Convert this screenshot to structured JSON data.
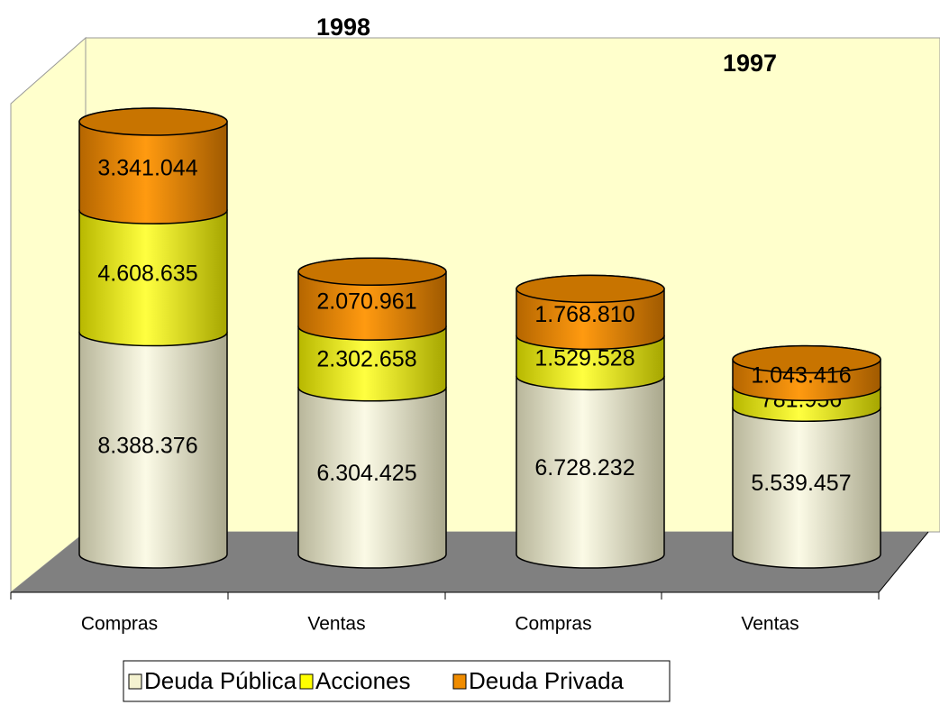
{
  "chart_data": {
    "type": "bar",
    "categories": [
      "Compras",
      "Ventas",
      "Compras",
      "Ventas"
    ],
    "annotations": [
      "1998",
      "1997"
    ],
    "series": [
      {
        "name": "Deuda Pública",
        "color": "#f4f2d0",
        "values": [
          8388376,
          6304425,
          6728232,
          5539457
        ],
        "value_labels": [
          "8.388.376",
          "6.304.425",
          "6.728.232",
          "5.539.457"
        ]
      },
      {
        "name": "Acciones",
        "color": "#ffff00",
        "values": [
          4608635,
          2302658,
          1529528,
          781956
        ],
        "value_labels": [
          "4.608.635",
          "2.302.658",
          "1.529.528",
          "781.956"
        ]
      },
      {
        "name": "Deuda Privada",
        "color": "#f08c00",
        "values": [
          3341044,
          2070961,
          1768810,
          1043416
        ],
        "value_labels": [
          "3.341.044",
          "2.070.961",
          "1.768.810",
          "1.043.416"
        ]
      }
    ],
    "stacked": true
  }
}
